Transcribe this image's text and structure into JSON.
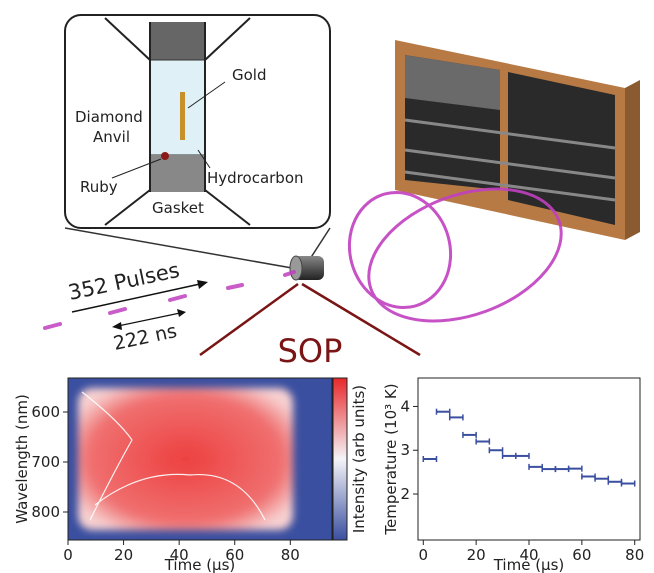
{
  "diagram": {
    "gold": "Gold",
    "diamond_anvil": [
      "Diamond",
      "Anvil"
    ],
    "ruby": "Ruby",
    "hydrocarbon": "Hydrocarbon",
    "gasket": "Gasket",
    "pulses": "352 Pulses",
    "spacing": "222 ns",
    "sop": "SOP"
  },
  "chart_data": [
    {
      "type": "heatmap",
      "xlabel": "Time (μs)",
      "ylabel": "Wavelength (nm)",
      "colorbar_label": "Intensity (arb units)",
      "xlim": [
        0,
        95
      ],
      "xticks": [
        0,
        20,
        40,
        60,
        80
      ],
      "ylim": [
        856,
        532
      ],
      "yticks": [
        600,
        700,
        800
      ]
    },
    {
      "type": "errorbar",
      "xlabel": "Time (μs)",
      "ylabel": "Temperature (10³ K)",
      "xlim": [
        -2,
        82
      ],
      "xticks": [
        0,
        20,
        40,
        60,
        80
      ],
      "ylim": [
        0.95,
        4.65
      ],
      "yticks": [
        2,
        3,
        4
      ],
      "series": [
        {
          "color": "#3a4fa0",
          "x": [
            2.5,
            7.5,
            12.5,
            17.5,
            22.5,
            27.5,
            32.5,
            37.5,
            42.5,
            47.5,
            52.5,
            57.5,
            62.5,
            67.5,
            72.5,
            77.5
          ],
          "values": [
            2.8,
            3.88,
            3.75,
            3.35,
            3.2,
            3.0,
            2.87,
            2.87,
            2.62,
            2.57,
            2.57,
            2.58,
            2.4,
            2.35,
            2.28,
            2.24
          ],
          "xerr": [
            2.5,
            2.5,
            2.5,
            2.5,
            2.5,
            2.5,
            2.5,
            2.5,
            2.5,
            2.5,
            2.5,
            2.5,
            2.5,
            2.5,
            2.5,
            2.5
          ]
        }
      ]
    }
  ]
}
